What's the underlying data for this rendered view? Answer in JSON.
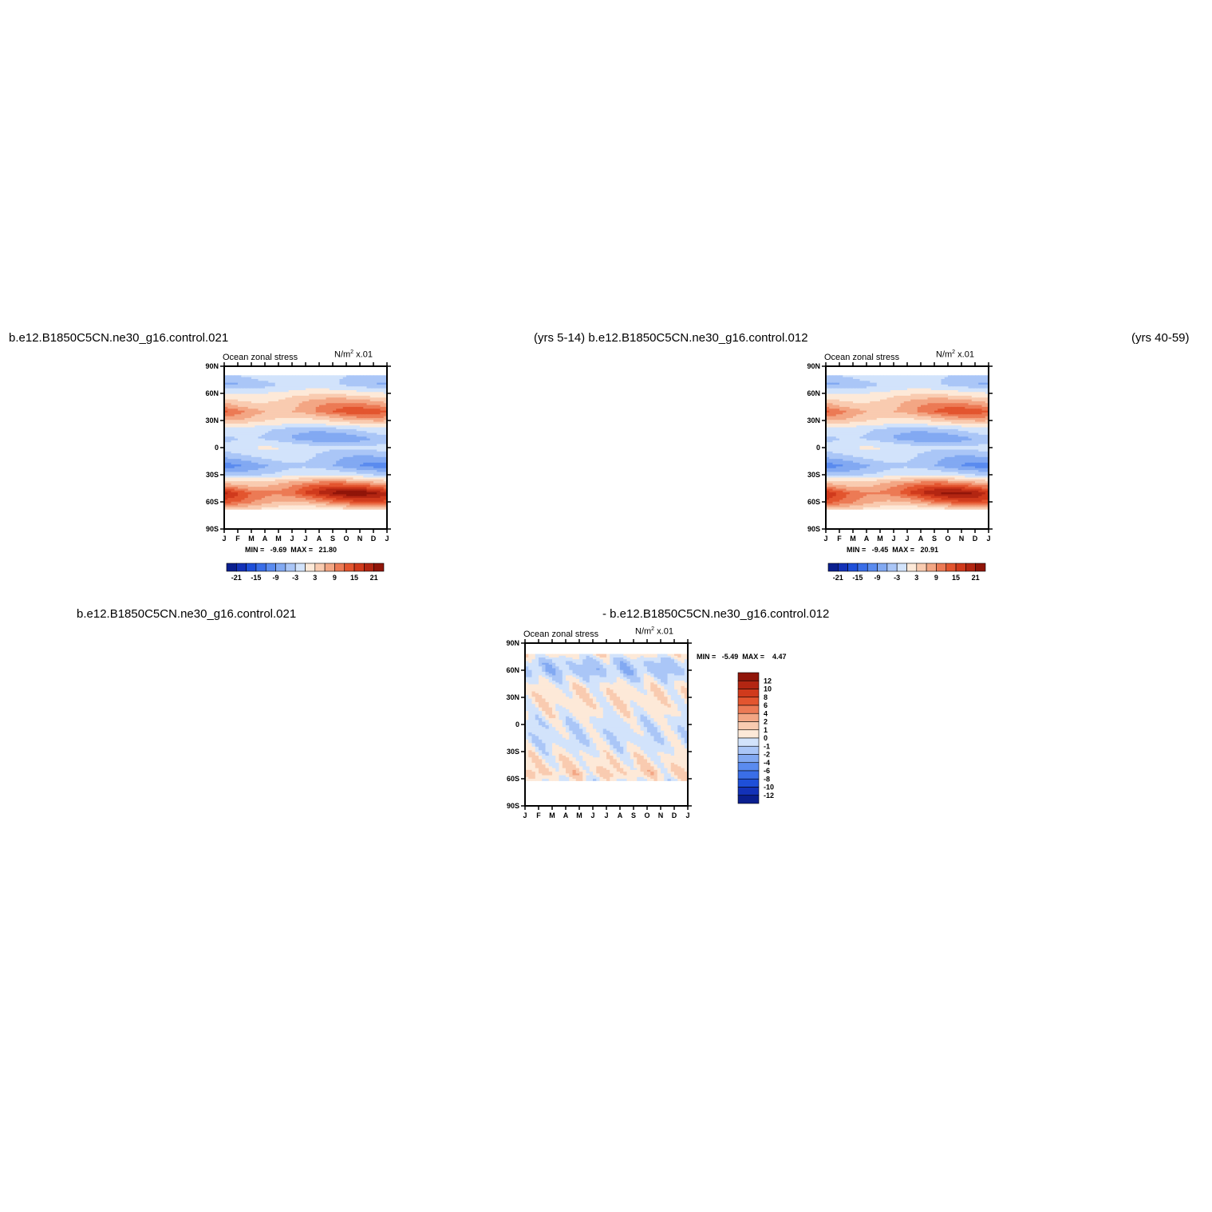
{
  "headers": {
    "top_left": "b.e12.B1850C5CN.ne30_g16.control.021",
    "top_mid": "(yrs 5-14) b.e12.B1850C5CN.ne30_g16.control.012",
    "top_right": "(yrs 40-59)",
    "bottom_left": "b.e12.B1850C5CN.ne30_g16.control.021",
    "bottom_mid": "- b.e12.B1850C5CN.ne30_g16.control.012"
  },
  "panels": [
    {
      "id": "panel-021",
      "title": "Ocean zonal stress",
      "units": "N/m",
      "units_sup": "2",
      "scale": "x.01",
      "stats": "MIN =   -9.69  MAX =   21.80"
    },
    {
      "id": "panel-012",
      "title": "Ocean zonal stress",
      "units": "N/m",
      "units_sup": "2",
      "scale": "x.01",
      "stats": "MIN =   -9.45  MAX =   20.91"
    },
    {
      "id": "panel-diff",
      "title": "Ocean zonal stress",
      "units": "N/m",
      "units_sup": "2",
      "scale": "x.01",
      "stats": "MIN =   -5.49  MAX =    4.47"
    }
  ],
  "colors": {
    "main_scale": [
      "#0a1f8f",
      "#1332b8",
      "#1e4fd9",
      "#3a6ee8",
      "#5a8bef",
      "#82a9f2",
      "#aac6f7",
      "#d2e3fb",
      "#fde9d8",
      "#f9cbb0",
      "#f3a684",
      "#ec7a55",
      "#e3552f",
      "#d03a1c",
      "#b32612",
      "#901509"
    ],
    "diff_scale": [
      "#0a1f8f",
      "#1332b8",
      "#1e4fd9",
      "#3a6ee8",
      "#5a8bef",
      "#82a9f2",
      "#aac6f7",
      "#d2e3fb",
      "#fde9d8",
      "#f9cbb0",
      "#f3a684",
      "#ec7a55",
      "#e3552f",
      "#d03a1c",
      "#b32612",
      "#901509"
    ]
  },
  "chart_data": [
    {
      "type": "heatmap",
      "title": "Ocean zonal stress",
      "units": "N/m2 x.01",
      "x": [
        "J",
        "F",
        "M",
        "A",
        "M",
        "J",
        "J",
        "A",
        "S",
        "O",
        "N",
        "D",
        "J"
      ],
      "y_ticks": [
        "90N",
        "60N",
        "30N",
        "0",
        "30S",
        "60S",
        "90S"
      ],
      "colorbar_labels": [
        "-21",
        "-15",
        "-9",
        "-3",
        "3",
        "9",
        "15",
        "21"
      ],
      "min": -9.69,
      "max": 21.8,
      "latitude_profile": [
        {
          "lat": 80,
          "value": -2
        },
        {
          "lat": 70,
          "value": -4
        },
        {
          "lat": 60,
          "value": 1
        },
        {
          "lat": 50,
          "value": 6
        },
        {
          "lat": 40,
          "value": 10
        },
        {
          "lat": 30,
          "value": 4
        },
        {
          "lat": 20,
          "value": -3
        },
        {
          "lat": 10,
          "value": -6
        },
        {
          "lat": 0,
          "value": -1
        },
        {
          "lat": -10,
          "value": -4
        },
        {
          "lat": -20,
          "value": -7
        },
        {
          "lat": -30,
          "value": -2
        },
        {
          "lat": -40,
          "value": 8
        },
        {
          "lat": -50,
          "value": 17
        },
        {
          "lat": -60,
          "value": 10
        },
        {
          "lat": -70,
          "value": 0
        }
      ]
    },
    {
      "type": "heatmap",
      "title": "Ocean zonal stress",
      "units": "N/m2 x.01",
      "x": [
        "J",
        "F",
        "M",
        "A",
        "M",
        "J",
        "J",
        "A",
        "S",
        "O",
        "N",
        "D",
        "J"
      ],
      "y_ticks": [
        "90N",
        "60N",
        "30N",
        "0",
        "30S",
        "60S",
        "90S"
      ],
      "colorbar_labels": [
        "-21",
        "-15",
        "-9",
        "-3",
        "3",
        "9",
        "15",
        "21"
      ],
      "min": -9.45,
      "max": 20.91,
      "latitude_profile": [
        {
          "lat": 80,
          "value": -2
        },
        {
          "lat": 70,
          "value": -4
        },
        {
          "lat": 60,
          "value": 1
        },
        {
          "lat": 50,
          "value": 6
        },
        {
          "lat": 40,
          "value": 10
        },
        {
          "lat": 30,
          "value": 4
        },
        {
          "lat": 20,
          "value": -3
        },
        {
          "lat": 10,
          "value": -6
        },
        {
          "lat": 0,
          "value": -1
        },
        {
          "lat": -10,
          "value": -4
        },
        {
          "lat": -20,
          "value": -7
        },
        {
          "lat": -30,
          "value": -2
        },
        {
          "lat": -40,
          "value": 8
        },
        {
          "lat": -50,
          "value": 16
        },
        {
          "lat": -60,
          "value": 10
        },
        {
          "lat": -70,
          "value": 0
        }
      ]
    },
    {
      "type": "heatmap",
      "title": "Ocean zonal stress",
      "units": "N/m2 x.01",
      "x": [
        "J",
        "F",
        "M",
        "A",
        "M",
        "J",
        "J",
        "A",
        "S",
        "O",
        "N",
        "D",
        "J"
      ],
      "y_ticks": [
        "90N",
        "60N",
        "30N",
        "0",
        "30S",
        "60S",
        "90S"
      ],
      "colorbar_labels": [
        "12",
        "10",
        "8",
        "6",
        "4",
        "2",
        "1",
        "0",
        "-1",
        "-2",
        "-4",
        "-6",
        "-8",
        "-10",
        "-12"
      ],
      "min": -5.49,
      "max": 4.47,
      "latitude_profile": [
        {
          "lat": 78,
          "value": 0.5
        },
        {
          "lat": 70,
          "value": -1
        },
        {
          "lat": 60,
          "value": -1.5
        },
        {
          "lat": 40,
          "value": 0.5
        },
        {
          "lat": 20,
          "value": 0.5
        },
        {
          "lat": 0,
          "value": -0.5
        },
        {
          "lat": -20,
          "value": -0.5
        },
        {
          "lat": -40,
          "value": 0.5
        },
        {
          "lat": -55,
          "value": 1
        },
        {
          "lat": -62,
          "value": 0
        }
      ]
    }
  ]
}
